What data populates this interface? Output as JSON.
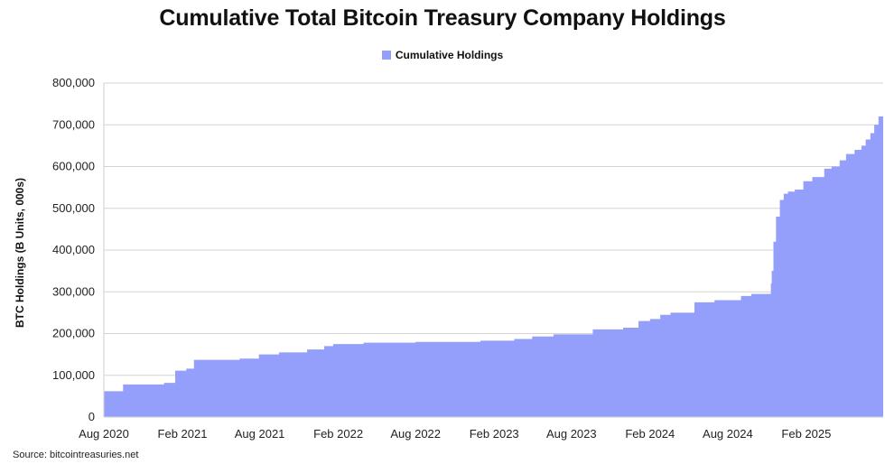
{
  "chart_data": {
    "type": "area",
    "title": "Cumulative Total Bitcoin Treasury Company Holdings",
    "xlabel": "",
    "ylabel": "BTC Holdings (B Units, 000s)",
    "source": "Source: bitcointreasuries.net",
    "legend": {
      "placement": "top-center",
      "entries": [
        "Cumulative Holdings"
      ]
    },
    "grid": {
      "y": true,
      "x": false
    },
    "color": "#949ffb",
    "ylim": [
      0,
      800000
    ],
    "yticks": [
      0,
      100000,
      200000,
      300000,
      400000,
      500000,
      600000,
      700000,
      800000
    ],
    "ytick_labels": [
      "0",
      "100,000",
      "200,000",
      "300,000",
      "400,000",
      "500,000",
      "600,000",
      "700,000",
      "800,000"
    ],
    "xlim": [
      "2020-08-01",
      "2025-07-31"
    ],
    "xticks": [
      "2020-08-01",
      "2021-02-01",
      "2021-08-01",
      "2022-02-01",
      "2022-08-01",
      "2023-02-01",
      "2023-08-01",
      "2024-02-01",
      "2024-08-01",
      "2025-02-01"
    ],
    "xtick_labels": [
      "Aug 2020",
      "Feb 2021",
      "Aug 2021",
      "Feb 2022",
      "Aug 2022",
      "Feb 2023",
      "Aug 2023",
      "Feb 2024",
      "Aug 2024",
      "Feb 2025"
    ],
    "series": [
      {
        "name": "Cumulative Holdings",
        "x": [
          "2020-08-01",
          "2020-09-15",
          "2020-12-20",
          "2021-01-15",
          "2021-02-10",
          "2021-02-28",
          "2021-06-15",
          "2021-07-30",
          "2021-09-15",
          "2021-11-20",
          "2021-12-30",
          "2022-01-20",
          "2022-04-01",
          "2022-08-01",
          "2022-12-31",
          "2023-03-20",
          "2023-05-01",
          "2023-06-20",
          "2023-09-20",
          "2023-11-30",
          "2024-01-05",
          "2024-02-01",
          "2024-02-25",
          "2024-03-20",
          "2024-05-15",
          "2024-07-01",
          "2024-09-01",
          "2024-09-25",
          "2024-11-10",
          "2024-11-12",
          "2024-11-16",
          "2024-11-22",
          "2024-12-01",
          "2024-12-10",
          "2024-12-20",
          "2025-01-05",
          "2025-01-25",
          "2025-02-15",
          "2025-03-15",
          "2025-04-01",
          "2025-04-20",
          "2025-05-05",
          "2025-05-25",
          "2025-06-10",
          "2025-06-20",
          "2025-07-01",
          "2025-07-10",
          "2025-07-20",
          "2025-07-31"
        ],
        "values": [
          62000,
          78000,
          82000,
          111000,
          116000,
          137000,
          140000,
          150000,
          155000,
          162000,
          170000,
          175000,
          178000,
          180000,
          183000,
          187000,
          193000,
          198000,
          210000,
          214000,
          230000,
          235000,
          245000,
          250000,
          275000,
          280000,
          290000,
          295000,
          320000,
          350000,
          420000,
          480000,
          520000,
          535000,
          540000,
          545000,
          565000,
          575000,
          595000,
          600000,
          615000,
          630000,
          640000,
          650000,
          665000,
          680000,
          700000,
          720000,
          738000
        ]
      }
    ]
  }
}
